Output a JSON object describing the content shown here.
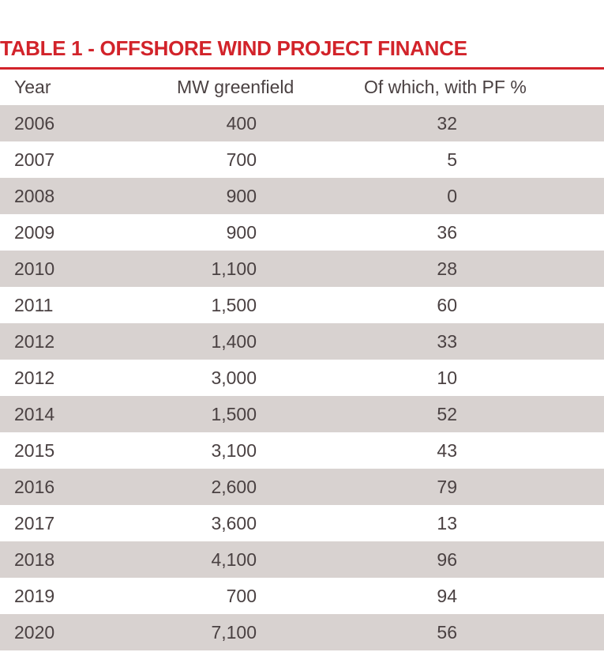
{
  "title": "TABLE 1 - OFFSHORE WIND PROJECT FINANCE",
  "colors": {
    "accent": "#d2232a",
    "stripe": "#d8d2d0",
    "text": "#4a4142"
  },
  "columns": [
    "Year",
    "MW greenfield",
    "Of which, with PF %"
  ],
  "rows": [
    {
      "year": "2006",
      "mw": "400",
      "pf": "32"
    },
    {
      "year": "2007",
      "mw": "700",
      "pf": "5"
    },
    {
      "year": "2008",
      "mw": "900",
      "pf": "0"
    },
    {
      "year": "2009",
      "mw": "900",
      "pf": "36"
    },
    {
      "year": "2010",
      "mw": "1,100",
      "pf": "28"
    },
    {
      "year": "2011",
      "mw": "1,500",
      "pf": "60"
    },
    {
      "year": "2012",
      "mw": "1,400",
      "pf": "33"
    },
    {
      "year": "2012",
      "mw": "3,000",
      "pf": "10"
    },
    {
      "year": "2014",
      "mw": "1,500",
      "pf": "52"
    },
    {
      "year": "2015",
      "mw": "3,100",
      "pf": "43"
    },
    {
      "year": "2016",
      "mw": "2,600",
      "pf": "79"
    },
    {
      "year": "2017",
      "mw": "3,600",
      "pf": "13"
    },
    {
      "year": "2018",
      "mw": "4,100",
      "pf": "96"
    },
    {
      "year": "2019",
      "mw": "700",
      "pf": "94"
    },
    {
      "year": "2020",
      "mw": "7,100",
      "pf": "56"
    }
  ]
}
